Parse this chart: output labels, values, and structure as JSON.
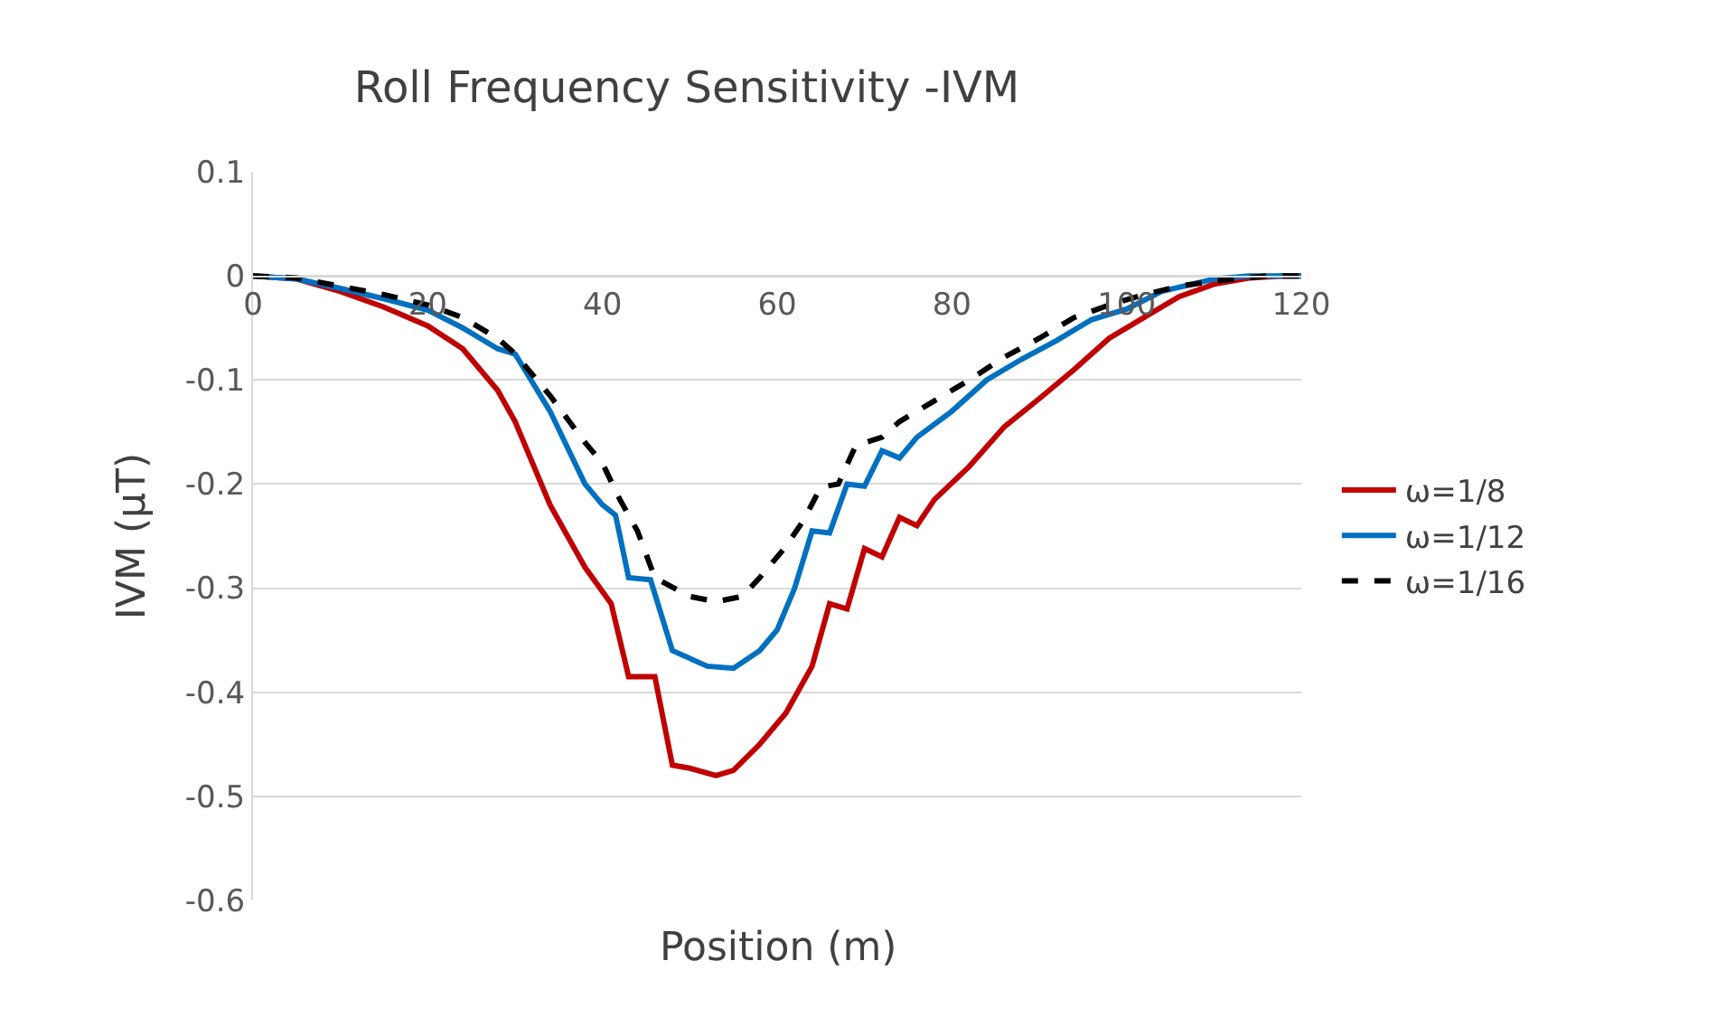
{
  "chart_data": {
    "type": "line",
    "title": "Roll Frequency Sensitivity -IVM",
    "xlabel": "Position (m)",
    "ylabel": "IVM (μT)",
    "xlim": [
      0,
      120
    ],
    "xticks": [
      0,
      20,
      40,
      60,
      80,
      100,
      120
    ],
    "ylim": [
      -0.6,
      0.1
    ],
    "yticks": [
      -0.6,
      -0.5,
      -0.4,
      -0.3,
      -0.2,
      -0.1,
      0,
      0.1
    ],
    "grid": "y",
    "legend": "right",
    "series": [
      {
        "name": "ω=1/8",
        "color": "#c00000",
        "line_style": "solid",
        "x": [
          0,
          5,
          10,
          15,
          20,
          24,
          28,
          30,
          34,
          38,
          41,
          43,
          46,
          48,
          50,
          53,
          55,
          58,
          61,
          64,
          66,
          68,
          70,
          72,
          74,
          76,
          78,
          82,
          86,
          90,
          94,
          98,
          102,
          106,
          110,
          114,
          118,
          120
        ],
        "values": [
          0,
          -0.003,
          -0.015,
          -0.03,
          -0.048,
          -0.07,
          -0.11,
          -0.14,
          -0.22,
          -0.28,
          -0.315,
          -0.385,
          -0.385,
          -0.47,
          -0.473,
          -0.48,
          -0.475,
          -0.45,
          -0.42,
          -0.375,
          -0.315,
          -0.32,
          -0.262,
          -0.27,
          -0.232,
          -0.24,
          -0.215,
          -0.183,
          -0.145,
          -0.118,
          -0.09,
          -0.06,
          -0.04,
          -0.02,
          -0.008,
          -0.002,
          0,
          0
        ]
      },
      {
        "name": "ω=1/12",
        "color": "#0070c0",
        "line_style": "solid",
        "x": [
          0,
          5,
          10,
          15,
          20,
          24,
          26,
          28,
          30,
          34,
          38,
          40,
          41.5,
          43,
          45.5,
          48,
          52,
          55,
          58,
          60,
          62,
          64,
          66,
          68,
          70,
          72,
          74,
          76,
          80,
          84,
          88,
          92,
          96,
          100,
          104,
          110,
          114,
          120
        ],
        "values": [
          0,
          -0.003,
          -0.012,
          -0.022,
          -0.033,
          -0.05,
          -0.06,
          -0.07,
          -0.075,
          -0.13,
          -0.2,
          -0.22,
          -0.23,
          -0.29,
          -0.292,
          -0.36,
          -0.375,
          -0.377,
          -0.36,
          -0.34,
          -0.3,
          -0.245,
          -0.247,
          -0.2,
          -0.202,
          -0.168,
          -0.175,
          -0.155,
          -0.13,
          -0.1,
          -0.08,
          -0.062,
          -0.042,
          -0.032,
          -0.015,
          -0.003,
          0,
          0
        ]
      },
      {
        "name": "ω=1/16",
        "color": "#000000",
        "line_style": "dashed",
        "x": [
          0,
          5,
          10,
          15,
          20,
          24,
          28,
          30,
          34,
          38,
          40,
          42,
          44,
          46,
          50,
          53,
          56,
          58,
          61,
          63,
          65,
          67,
          69,
          72,
          74,
          78,
          82,
          86,
          90,
          94,
          98,
          102,
          106,
          110,
          116,
          120
        ],
        "values": [
          0,
          -0.002,
          -0.01,
          -0.018,
          -0.028,
          -0.04,
          -0.06,
          -0.075,
          -0.115,
          -0.16,
          -0.18,
          -0.215,
          -0.245,
          -0.29,
          -0.308,
          -0.313,
          -0.308,
          -0.29,
          -0.26,
          -0.235,
          -0.203,
          -0.2,
          -0.163,
          -0.155,
          -0.14,
          -0.12,
          -0.1,
          -0.078,
          -0.06,
          -0.04,
          -0.028,
          -0.018,
          -0.01,
          -0.005,
          0,
          0
        ]
      }
    ]
  }
}
